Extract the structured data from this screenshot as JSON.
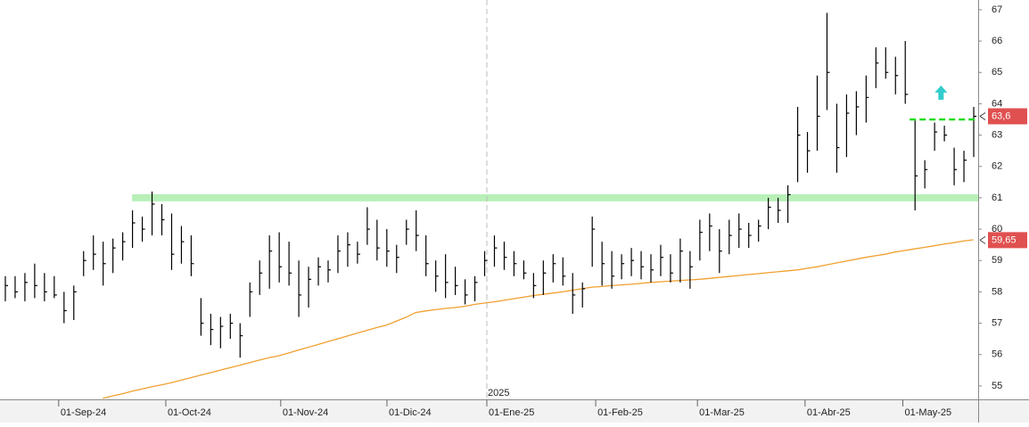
{
  "chart_data": {
    "type": "ohlc",
    "xlim": [
      -0.5,
      99.5
    ],
    "ylim": [
      54.57,
      67.31
    ],
    "yticks": [
      55,
      56,
      57,
      58,
      59,
      60,
      61,
      62,
      63,
      64,
      65,
      66,
      67
    ],
    "xticks": [
      {
        "value": 5.5,
        "label": "01-Sep-24"
      },
      {
        "value": 16.45,
        "label": "01-Oct-24"
      },
      {
        "value": 28.2,
        "label": "01-Nov-24"
      },
      {
        "value": 39.06,
        "label": "01-Dic-24"
      },
      {
        "value": 49.27,
        "label": "01-Ene-25"
      },
      {
        "value": 60.4,
        "label": "01-Feb-25"
      },
      {
        "value": 70.8,
        "label": "01-Mar-25"
      },
      {
        "value": 81.8,
        "label": "01-Abr-25"
      },
      {
        "value": 91.8,
        "label": "01-May-25"
      }
    ],
    "year_marker": {
      "value": 49.27,
      "label": "2025"
    },
    "bars": {
      "color": "#000000",
      "high": [
        58.5,
        58.5,
        58.6,
        58.9,
        58.6,
        58.5,
        58.0,
        58.2,
        59.3,
        59.8,
        59.6,
        59.7,
        59.9,
        60.6,
        60.4,
        61.2,
        60.8,
        60.5,
        60.1,
        59.8,
        57.8,
        57.3,
        57.2,
        57.3,
        57.0,
        58.3,
        59.0,
        59.8,
        59.9,
        59.6,
        59.0,
        58.8,
        59.1,
        59.0,
        59.8,
        59.9,
        59.6,
        60.7,
        60.3,
        60.0,
        59.5,
        60.3,
        60.6,
        59.8,
        59.0,
        59.2,
        58.8,
        58.4,
        58.5,
        59.3,
        59.8,
        59.6,
        59.3,
        59.0,
        58.6,
        59.0,
        59.2,
        59.1,
        58.6,
        58.3,
        60.4,
        59.6,
        59.3,
        59.2,
        59.4,
        59.3,
        59.2,
        59.5,
        59.2,
        59.7,
        59.3,
        60.3,
        60.5,
        60.0,
        60.3,
        60.5,
        60.2,
        60.3,
        61.0,
        61.0,
        61.4,
        63.9,
        63.1,
        64.9,
        66.9,
        64.0,
        64.3,
        64.4,
        64.9,
        65.8,
        65.8,
        65.5,
        66.0,
        63.5,
        62.2,
        63.4,
        63.3,
        62.6,
        62.5,
        63.9
      ],
      "low": [
        57.7,
        57.8,
        57.7,
        57.8,
        57.7,
        57.8,
        57.0,
        57.1,
        58.5,
        58.7,
        58.2,
        58.6,
        59.0,
        59.4,
        59.6,
        59.8,
        59.8,
        58.7,
        58.9,
        58.5,
        56.6,
        56.3,
        56.2,
        56.5,
        55.9,
        57.2,
        57.9,
        58.1,
        58.3,
        58.2,
        57.2,
        57.5,
        58.2,
        58.3,
        58.6,
        58.8,
        58.9,
        59.5,
        59.0,
        58.8,
        58.6,
        59.5,
        59.3,
        58.5,
        58.0,
        57.8,
        57.9,
        57.6,
        57.7,
        58.5,
        58.8,
        58.7,
        58.5,
        58.4,
        57.8,
        57.9,
        58.3,
        58.2,
        57.3,
        57.5,
        58.8,
        58.2,
        58.1,
        58.4,
        58.5,
        58.4,
        58.3,
        58.5,
        58.3,
        58.3,
        58.1,
        59.0,
        59.3,
        58.6,
        59.2,
        59.4,
        59.4,
        59.6,
        60.0,
        60.2,
        60.2,
        61.5,
        61.8,
        62.5,
        63.8,
        61.8,
        62.3,
        63.0,
        63.4,
        64.5,
        64.8,
        64.3,
        64.0,
        60.6,
        61.3,
        62.5,
        62.8,
        61.4,
        61.5,
        62.3
      ],
      "close": [
        58.2,
        58.0,
        58.3,
        58.2,
        58.0,
        57.9,
        57.4,
        58.0,
        59.0,
        59.2,
        58.9,
        59.4,
        59.6,
        60.2,
        60.0,
        60.8,
        60.3,
        59.2,
        59.6,
        58.9,
        57.0,
        56.8,
        56.9,
        57.0,
        56.6,
        58.0,
        58.6,
        59.3,
        58.8,
        58.6,
        57.9,
        58.4,
        58.8,
        58.7,
        59.3,
        59.5,
        59.2,
        60.0,
        59.4,
        59.3,
        59.1,
        60.0,
        59.8,
        58.9,
        58.5,
        58.3,
        58.2,
        57.9,
        58.3,
        59.0,
        59.4,
        59.1,
        58.9,
        58.6,
        58.2,
        58.6,
        58.9,
        58.5,
        57.9,
        58.1,
        60.0,
        58.9,
        58.5,
        58.9,
        59.0,
        58.8,
        58.7,
        59.1,
        58.6,
        59.3,
        58.8,
        59.9,
        60.1,
        59.3,
        59.8,
        60.0,
        59.8,
        60.1,
        60.7,
        60.6,
        61.1,
        63.0,
        62.5,
        63.6,
        65.0,
        62.6,
        63.7,
        63.9,
        64.2,
        65.3,
        65.0,
        64.9,
        64.3,
        61.7,
        61.9,
        63.1,
        63.0,
        61.9,
        62.2,
        63.6
      ]
    },
    "moving_average": {
      "color": "#f0a030",
      "values": [
        null,
        null,
        null,
        null,
        null,
        null,
        null,
        null,
        null,
        null,
        54.6,
        54.68,
        54.75,
        54.83,
        54.9,
        54.97,
        55.03,
        55.1,
        55.18,
        55.26,
        55.34,
        55.42,
        55.5,
        55.58,
        55.66,
        55.74,
        55.82,
        55.9,
        55.96,
        56.05,
        56.14,
        56.23,
        56.32,
        56.41,
        56.5,
        56.59,
        56.68,
        56.77,
        56.86,
        56.94,
        57.06,
        57.19,
        57.34,
        57.39,
        57.43,
        57.47,
        57.5,
        57.54,
        57.6,
        57.64,
        57.68,
        57.73,
        57.78,
        57.83,
        57.88,
        57.92,
        57.96,
        58.0,
        58.05,
        58.1,
        58.15,
        58.17,
        58.2,
        58.22,
        58.24,
        58.27,
        58.3,
        58.32,
        58.34,
        58.36,
        58.38,
        58.4,
        58.43,
        58.46,
        58.49,
        58.52,
        58.55,
        58.58,
        58.61,
        58.64,
        58.67,
        58.7,
        58.75,
        58.8,
        58.86,
        58.92,
        58.98,
        59.04,
        59.1,
        59.15,
        59.2,
        59.27,
        59.32,
        59.37,
        59.42,
        59.47,
        59.52,
        59.57,
        59.62,
        59.66
      ]
    },
    "support_band": {
      "value": 61,
      "from": 13,
      "color": "#b8f0b8"
    },
    "level_line": {
      "value": 63.5,
      "from": 92.5,
      "to": 99.3,
      "color": "#22dd22"
    },
    "arrow": {
      "x": 95.7,
      "y": 64.3,
      "color": "#33cccc"
    },
    "price_labels": [
      {
        "value": 63.6,
        "label": "63,6"
      },
      {
        "value": 59.65,
        "label": "59,65"
      }
    ],
    "price_label_color": "#e05050"
  }
}
